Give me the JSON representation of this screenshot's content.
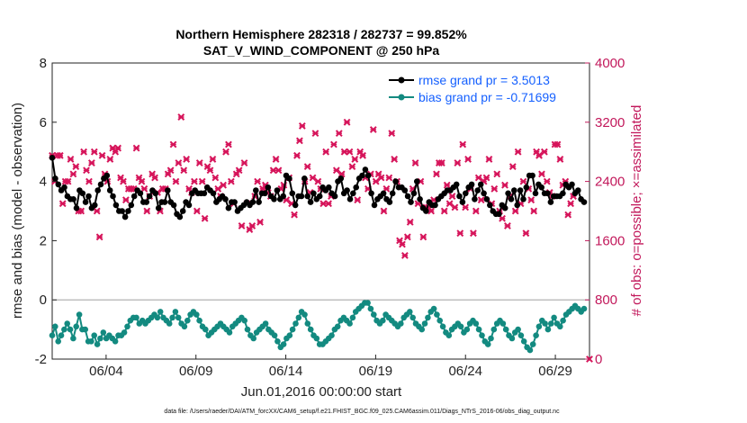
{
  "chart_data": {
    "type": "line",
    "title": "Northern Hemisphere 282318 / 282737 = 99.852%",
    "subtitle": "SAT_V_WIND_COMPONENT @ 250 hPa",
    "xlabel": "Jun.01,2016 00:00:00 start",
    "ylabel": "rmse and bias (model - observation)",
    "ylabel_right": "# of obs: o=possible; ×=assimilated",
    "footnote": "data file: /Users/raeder/DAI/ATM_forcXX/CAM6_setup/f.e21.FHIST_BGC.f09_025.CAM6assim.011/Diags_NTrS_2016-06/obs_diag_output.nc",
    "x_ticks": [
      "06/04",
      "06/09",
      "06/14",
      "06/19",
      "06/24",
      "06/29"
    ],
    "x_tick_days": [
      4,
      9,
      14,
      19,
      24,
      29
    ],
    "x_range_days": [
      1.0,
      30.9
    ],
    "ylim": [
      -2,
      8
    ],
    "y_ticks": [
      "-2",
      "0",
      "2",
      "4",
      "6",
      "8"
    ],
    "y2lim": [
      0,
      4000
    ],
    "y2_ticks": [
      "0",
      "800",
      "1600",
      "2400",
      "3200",
      "4000"
    ],
    "legend": {
      "placement": "top-right",
      "rmse_label": "rmse grand pr = 3.5013",
      "bias_label": "bias grand pr = -0.71699"
    },
    "colors": {
      "rmse": "#000000",
      "bias": "#138a80",
      "obs": "#d6145a",
      "zero_line": "#aaaaaa"
    },
    "series": [
      {
        "name": "rmse",
        "values": [
          4.8,
          4.1,
          3.9,
          3.7,
          3.8,
          3.5,
          3.4,
          3.4,
          3.1,
          3.7,
          3.6,
          3.3,
          3.5,
          3.1,
          3.2,
          3.7,
          3.9,
          4.1,
          4.2,
          3.7,
          3.5,
          3.2,
          3.0,
          3.0,
          2.8,
          3.0,
          3.2,
          3.5,
          3.7,
          3.6,
          3.3,
          3.3,
          3.5,
          3.7,
          3.6,
          3.1,
          3.3,
          3.3,
          3.7,
          3.3,
          3.2,
          2.9,
          2.8,
          3.0,
          3.3,
          3.2,
          3.6,
          3.7,
          3.6,
          3.6,
          3.6,
          3.8,
          3.7,
          3.6,
          3.3,
          3.4,
          3.5,
          3.4,
          3.1,
          3.3,
          3.3,
          3.0,
          3.1,
          3.2,
          3.3,
          3.2,
          3.3,
          3.7,
          3.3,
          3.6,
          3.6,
          3.8,
          3.5,
          3.4,
          3.7,
          3.4,
          3.5,
          4.2,
          4.1,
          3.6,
          3.2,
          3.5,
          3.5,
          4.1,
          3.5,
          3.3,
          3.6,
          3.4,
          3.5,
          3.8,
          3.7,
          3.8,
          3.6,
          3.5,
          4.0,
          4.1,
          3.6,
          3.7,
          3.4,
          3.6,
          3.8,
          4.1,
          4.2,
          4.4,
          4.2,
          3.6,
          3.2,
          3.4,
          3.5,
          3.6,
          3.4,
          3.3,
          3.6,
          4.0,
          3.8,
          3.8,
          3.7,
          3.5,
          3.3,
          3.6,
          4.0,
          3.4,
          3.1,
          3.0,
          3.3,
          3.2,
          3.2,
          3.4,
          3.5,
          3.6,
          3.7,
          3.7,
          3.8,
          3.9,
          3.5,
          3.3,
          3.6,
          3.8,
          3.9,
          3.4,
          3.7,
          3.9,
          3.6,
          3.4,
          3.2,
          3.0,
          2.9,
          2.9,
          3.2,
          3.1,
          3.6,
          3.4,
          3.7,
          3.2,
          3.7,
          3.4,
          3.8,
          4.2,
          4.2,
          3.6,
          3.9,
          3.8,
          3.6,
          3.6,
          3.3,
          3.5,
          3.5,
          3.5,
          3.6,
          3.9,
          3.8,
          3.9,
          3.6,
          3.7,
          3.4,
          3.3
        ]
      },
      {
        "name": "bias",
        "values": [
          -1.2,
          -0.9,
          -1.4,
          -1.2,
          -1.0,
          -0.8,
          -1.0,
          -1.3,
          -0.9,
          -0.5,
          -1.0,
          -1.0,
          -1.4,
          -1.4,
          -1.2,
          -1.5,
          -1.3,
          -1.1,
          -1.3,
          -1.2,
          -1.3,
          -1.4,
          -1.2,
          -1.2,
          -1.1,
          -0.9,
          -0.7,
          -0.6,
          -0.6,
          -0.8,
          -0.7,
          -0.8,
          -0.7,
          -0.6,
          -0.5,
          -0.6,
          -0.4,
          -0.6,
          -0.7,
          -0.8,
          -0.6,
          -0.4,
          -0.6,
          -0.8,
          -0.9,
          -0.7,
          -0.5,
          -0.4,
          -0.5,
          -0.7,
          -0.9,
          -1.0,
          -1.2,
          -1.1,
          -1.0,
          -0.9,
          -0.8,
          -0.9,
          -1.0,
          -1.1,
          -0.9,
          -0.8,
          -0.7,
          -0.6,
          -0.7,
          -1.0,
          -1.2,
          -1.3,
          -1.1,
          -1.0,
          -0.9,
          -0.8,
          -1.0,
          -1.1,
          -1.2,
          -1.4,
          -1.6,
          -1.5,
          -1.3,
          -1.2,
          -1.0,
          -0.8,
          -0.6,
          -0.4,
          -0.5,
          -0.8,
          -1.0,
          -1.2,
          -1.3,
          -1.5,
          -1.5,
          -1.4,
          -1.3,
          -1.2,
          -1.0,
          -0.9,
          -0.7,
          -0.6,
          -0.7,
          -0.8,
          -0.6,
          -0.4,
          -0.3,
          -0.2,
          -0.1,
          -0.1,
          -0.3,
          -0.5,
          -0.7,
          -0.8,
          -0.7,
          -0.5,
          -0.6,
          -0.7,
          -0.8,
          -0.9,
          -0.8,
          -0.6,
          -0.5,
          -0.4,
          -0.6,
          -0.8,
          -0.9,
          -1.0,
          -0.8,
          -0.6,
          -0.4,
          -0.3,
          -0.5,
          -0.7,
          -0.9,
          -1.1,
          -1.2,
          -1.0,
          -0.9,
          -0.8,
          -0.9,
          -1.1,
          -1.0,
          -0.8,
          -0.7,
          -0.8,
          -1.0,
          -1.2,
          -1.4,
          -1.5,
          -1.3,
          -1.0,
          -0.8,
          -0.7,
          -0.8,
          -1.0,
          -1.2,
          -1.3,
          -1.1,
          -1.0,
          -1.2,
          -1.4,
          -1.6,
          -1.7,
          -1.5,
          -1.2,
          -0.9,
          -0.7,
          -0.8,
          -1.0,
          -0.8,
          -0.6,
          -0.8,
          -0.9,
          -0.7,
          -0.5,
          -0.4,
          -0.3,
          -0.2,
          -0.3,
          -0.4,
          -0.3
        ]
      },
      {
        "name": "obs_assimilated",
        "values": [
          2750,
          2400,
          2750,
          2750,
          2100,
          2400,
          2400,
          2700,
          2500,
          2600,
          2000,
          2000,
          2800,
          2550,
          2400,
          2650,
          2800,
          2000,
          1650,
          2750,
          2500,
          2400,
          2700,
          2850,
          2800,
          2850,
          2450,
          2400,
          2150,
          2300,
          2300,
          2300,
          2850,
          2450,
          2400,
          2300,
          2000,
          2200,
          2500,
          2450,
          2250,
          2000,
          2300,
          2300,
          2500,
          2550,
          2900,
          2400,
          2650,
          3270,
          2550,
          2700,
          2300,
          2250,
          2400,
          2000,
          2650,
          2400,
          1900,
          2600,
          2550,
          2700,
          2450,
          2300,
          2200,
          2350,
          2800,
          2900,
          2400,
          2100,
          2500,
          2550,
          1800,
          2650,
          2100,
          1750,
          1800,
          2200,
          2400,
          1850,
          2300,
          2350,
          2250,
          2200,
          2550,
          2700,
          2550,
          2300,
          2350,
          2150,
          2450,
          2100,
          1950,
          2750,
          2950,
          3150,
          2400,
          2600,
          2250,
          2450,
          3050,
          2400,
          2300,
          2100,
          2800,
          2100,
          2200,
          2900,
          2550,
          3050,
          2500,
          2800,
          3200,
          2800,
          2600,
          2700,
          2150,
          2800,
          2750,
          2450,
          2300,
          2500,
          3100,
          2400,
          2500,
          2450,
          2000,
          2300,
          2450,
          3050,
          2700,
          2400,
          1600,
          1550,
          1400,
          1650,
          1850,
          2300,
          2650,
          2100,
          2400,
          1650,
          2050,
          2050,
          2000,
          2150,
          2500,
          2650,
          2650,
          2000,
          2350,
          2100,
          2200,
          2050,
          2650,
          1700,
          2900,
          2050,
          2700,
          2300,
          1700,
          2000,
          2450,
          2150,
          2400,
          2450,
          2700,
          2100,
          2300,
          2500,
          2000,
          1900,
          2350,
          1800,
          2200,
          2600,
          2000,
          2800,
          2100,
          2400,
          1700,
          2300,
          2150,
          2000,
          2800,
          2750,
          2500,
          2800,
          2400,
          2250,
          2200,
          2900,
          2900,
          2700,
          2350,
          2400,
          1950,
          2100,
          2200
        ]
      }
    ]
  }
}
